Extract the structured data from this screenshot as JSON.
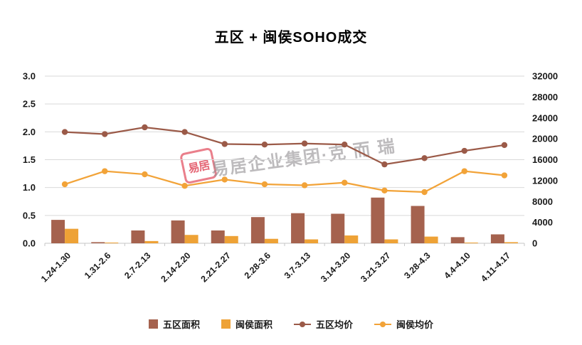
{
  "title": "五区 + 闽侯SOHO成交",
  "watermark": {
    "stamp_text": "易居",
    "text": "易居企业集团·克 而 瑞"
  },
  "chart_data": {
    "type": "combo",
    "title": "五区 + 闽侯SOHO成交",
    "categories": [
      "1.24-1.30",
      "1.31-2.6",
      "2.7-2.13",
      "2.14-2.20",
      "2.21-2.27",
      "2.28-3.6",
      "3.7-3.13",
      "3.14-3.20",
      "3.21-3.27",
      "3.28-4.3",
      "4.4-4.10",
      "4.11-4.17"
    ],
    "series": [
      {
        "name": "五区面积",
        "type": "bar",
        "axis": "left",
        "color": "#A5624E",
        "values": [
          0.42,
          0.02,
          0.23,
          0.41,
          0.23,
          0.47,
          0.54,
          0.53,
          0.82,
          0.67,
          0.11,
          0.16
        ]
      },
      {
        "name": "闽侯面积",
        "type": "bar",
        "axis": "left",
        "color": "#EEA236",
        "values": [
          0.26,
          0.01,
          0.04,
          0.15,
          0.13,
          0.08,
          0.07,
          0.14,
          0.07,
          0.12,
          0.01,
          0.02
        ]
      },
      {
        "name": "五区均价",
        "type": "line",
        "axis": "right",
        "color": "#9B5A48",
        "values": [
          21300,
          20900,
          22200,
          21300,
          19000,
          18900,
          19100,
          18900,
          15100,
          16300,
          17700,
          18800
        ]
      },
      {
        "name": "闽侯均价",
        "type": "line",
        "axis": "right",
        "color": "#F2A338",
        "values": [
          11300,
          13800,
          13200,
          11000,
          12200,
          11300,
          11100,
          11600,
          10100,
          9800,
          13800,
          13000
        ]
      }
    ],
    "left_axis": {
      "min": 0,
      "max": 3,
      "step": 0.5,
      "labels": [
        "0.0",
        "0.5",
        "1.0",
        "1.5",
        "2.0",
        "2.5",
        "3.0"
      ]
    },
    "right_axis": {
      "min": 0,
      "max": 32000,
      "step": 4000,
      "labels": [
        "0",
        "4000",
        "8000",
        "12000",
        "16000",
        "20000",
        "24000",
        "28000",
        "32000"
      ]
    },
    "grid": true,
    "legend_position": "bottom",
    "colors": {
      "grid": "#D9D9D9",
      "axis_line": "#C6C6C6",
      "tick_text": "#1a1a1a"
    }
  }
}
